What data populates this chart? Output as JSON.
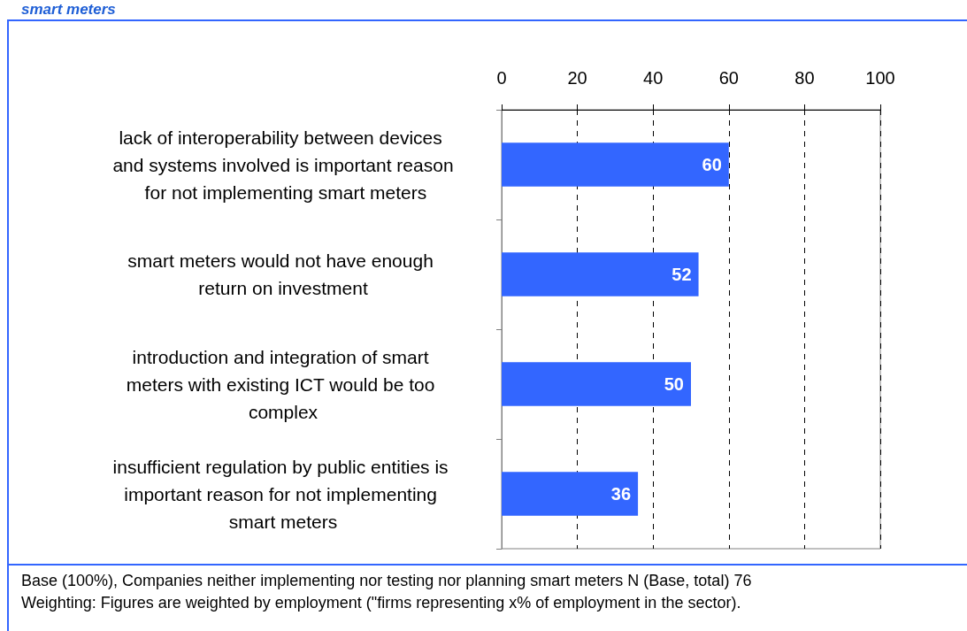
{
  "chart_data": {
    "type": "bar",
    "title": "smart meters",
    "orientation": "horizontal",
    "categories": [
      "lack of interoperability between devices and systems involved is important reason for not implementing smart meters",
      "smart meters would not have enough return on investment",
      "introduction and integration of smart meters with existing ICT would be too complex",
      "insufficient regulation by public entities is important reason for not implementing smart meters"
    ],
    "values": [
      60,
      52,
      50,
      36
    ],
    "color": "#3366ff",
    "data_labels": true,
    "xlim": [
      0,
      100
    ],
    "xticks": [
      0,
      20,
      40,
      60,
      80,
      100
    ],
    "grid": "x",
    "annotations": [
      "Base (100%), Companies neither implementing nor testing nor planning smart meters N (Base, total) 76",
      "Weighting: Figures are weighted by employment (\"firms representing x% of employment in the sector)."
    ]
  }
}
